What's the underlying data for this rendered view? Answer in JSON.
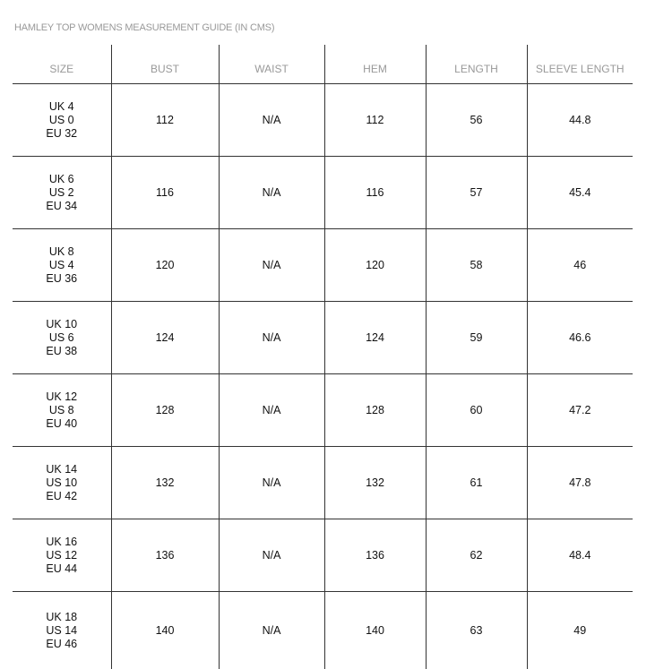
{
  "title": "HAMLEY TOP WOMENS MEASUREMENT GUIDE (IN CMS)",
  "headers": [
    "SIZE",
    "BUST",
    "WAIST",
    "HEM",
    "LENGTH",
    "SLEEVE LENGTH"
  ],
  "rows": [
    {
      "uk": "UK 4",
      "us": "US 0",
      "eu": "EU 32",
      "bust": "112",
      "waist": "N/A",
      "hem": "112",
      "length": "56",
      "sleeve": "44.8"
    },
    {
      "uk": "UK 6",
      "us": "US 2",
      "eu": "EU 34",
      "bust": "116",
      "waist": "N/A",
      "hem": "116",
      "length": "57",
      "sleeve": "45.4"
    },
    {
      "uk": "UK 8",
      "us": "US 4",
      "eu": "EU 36",
      "bust": "120",
      "waist": "N/A",
      "hem": "120",
      "length": "58",
      "sleeve": "46"
    },
    {
      "uk": "UK 10",
      "us": "US 6",
      "eu": "EU 38",
      "bust": "124",
      "waist": "N/A",
      "hem": "124",
      "length": "59",
      "sleeve": "46.6"
    },
    {
      "uk": "UK 12",
      "us": "US 8",
      "eu": "EU 40",
      "bust": "128",
      "waist": "N/A",
      "hem": "128",
      "length": "60",
      "sleeve": "47.2"
    },
    {
      "uk": "UK 14",
      "us": "US 10",
      "eu": "EU 42",
      "bust": "132",
      "waist": "N/A",
      "hem": "132",
      "length": "61",
      "sleeve": "47.8"
    },
    {
      "uk": "UK 16",
      "us": "US 12",
      "eu": "EU 44",
      "bust": "136",
      "waist": "N/A",
      "hem": "136",
      "length": "62",
      "sleeve": "48.4"
    },
    {
      "uk": "UK 18",
      "us": "US 14",
      "eu": "EU 46",
      "bust": "140",
      "waist": "N/A",
      "hem": "140",
      "length": "63",
      "sleeve": "49"
    }
  ]
}
